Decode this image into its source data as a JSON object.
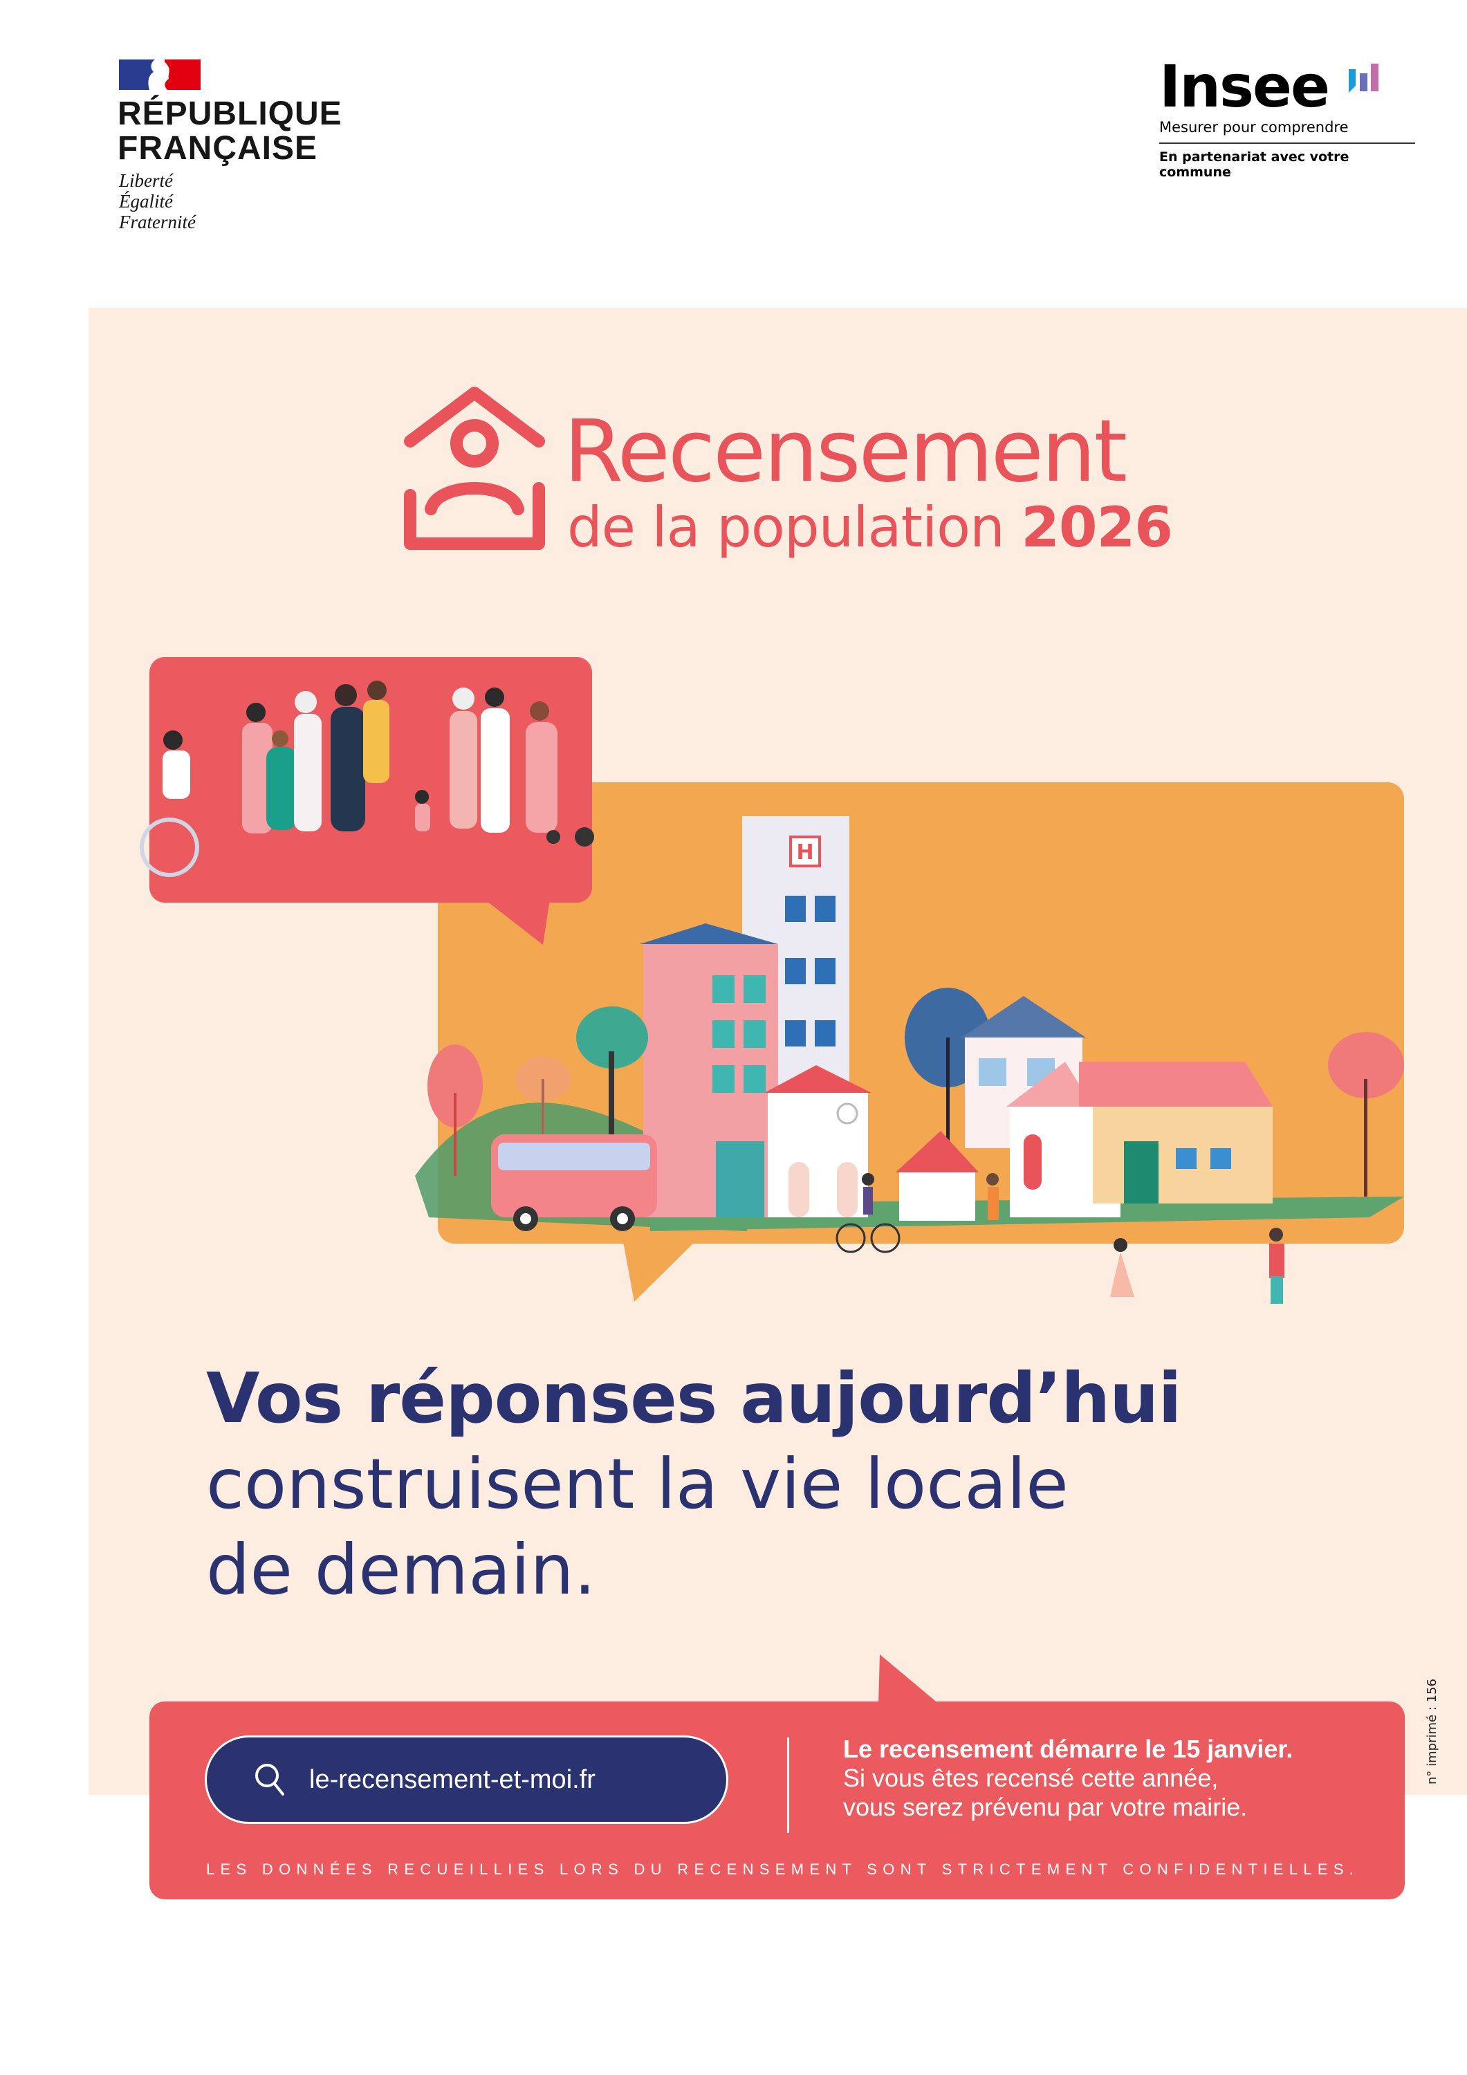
{
  "header": {
    "republic_logo": {
      "name_line1": "RÉPUBLIQUE",
      "name_line2": "FRANÇAISE",
      "motto": [
        "Liberté",
        "Égalité",
        "Fraternité"
      ],
      "colors": {
        "blue": "#2a3c8f",
        "red": "#e1000f"
      }
    },
    "insee_logo": {
      "word": "Insee",
      "tagline": "Mesurer pour comprendre",
      "partner": "En partenariat avec votre commune",
      "bar_colors": [
        "#1a9ad6",
        "#6a6fb8",
        "#c36ea9"
      ]
    }
  },
  "title": {
    "line1": "Recensement",
    "line2": "de la population",
    "year": "2026",
    "icon": "house-person-icon",
    "color": "#e8545a"
  },
  "headline": {
    "bold": "Vos réponses aujourd’hui",
    "line2": "construisent la vie locale",
    "line3": "de demain.",
    "color": "#2b3270"
  },
  "cta": {
    "search_icon": "search-icon",
    "url": "le-recensement-et-moi.fr",
    "info_bold": "Le recensement démarre le 15 janvier.",
    "info_line2": "Si vous êtes recensé cette année,",
    "info_line3": "vous serez prévenu par votre mairie.",
    "footer": "LES DONNÉES RECUEILLIES LORS DU RECENSEMENT SONT STRICTEMENT CONFIDENTIELLES.",
    "color": "#eb5a5e"
  },
  "print_number": "n° imprimé : 156",
  "colors": {
    "panel": "#fdece0",
    "orange": "#f4a751",
    "navy": "#2b3270"
  }
}
